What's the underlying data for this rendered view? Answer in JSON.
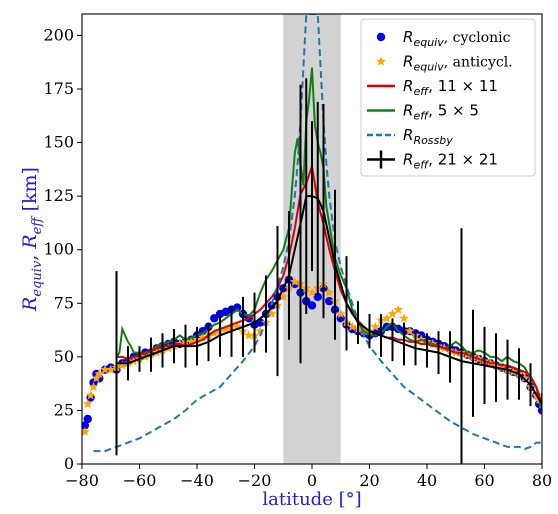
{
  "chart_data": {
    "type": "line",
    "xlabel": "latitude [°]",
    "ylabel": {
      "r1_base": "R",
      "r1_sub": "equiv",
      "sep": ", ",
      "r2_base": "R",
      "r2_sub": "eff",
      "unit": " [km]"
    },
    "xlim": [
      -80,
      80
    ],
    "ylim": [
      0,
      210
    ],
    "xticks": [
      "−80",
      "−60",
      "−40",
      "−20",
      "0",
      "20",
      "40",
      "60",
      "80"
    ],
    "xtick_values": [
      -80,
      -60,
      -40,
      -20,
      0,
      20,
      40,
      60,
      80
    ],
    "yticks": [
      "0",
      "25",
      "50",
      "75",
      "100",
      "125",
      "150",
      "175",
      "200"
    ],
    "ytick_values": [
      0,
      25,
      50,
      75,
      100,
      125,
      150,
      175,
      200
    ],
    "grid": false,
    "shaded_band": {
      "x_from": -10,
      "x_to": 10,
      "color": "#d3d3d3"
    },
    "legend": {
      "placement": "top-right",
      "entries": [
        {
          "key": "cyclonic",
          "base": "R",
          "sub": "equiv",
          "rest": ", cyclonic",
          "marker": "circle",
          "color": "#0000ee"
        },
        {
          "key": "anticyclonic",
          "base": "R",
          "sub": "equiv",
          "rest": ", anticycl.",
          "marker": "star",
          "color": "#ffa500"
        },
        {
          "key": "reff11",
          "base": "R",
          "sub": "eff",
          "rest": ",   11 × 11",
          "marker": "line",
          "color": "#e00000"
        },
        {
          "key": "reff5",
          "base": "R",
          "sub": "eff",
          "rest": ",   5 × 5",
          "marker": "line",
          "color": "#108010"
        },
        {
          "key": "rossby",
          "base": "R",
          "sub": "Rossby",
          "rest": "",
          "marker": "dashed",
          "color": "#1f77b4"
        },
        {
          "key": "reff21",
          "base": "R",
          "sub": "eff",
          "rest": ",   21 × 21",
          "marker": "errorbar",
          "color": "#000000"
        }
      ]
    },
    "series": [
      {
        "key": "cyclonic",
        "style": "scatter-circle",
        "color": "#0000ee",
        "x": [
          -79,
          -78,
          -77,
          -76,
          -75,
          -74,
          -72,
          -70,
          -68,
          -66,
          -64,
          -62,
          -60,
          -58,
          -56,
          -54,
          -52,
          -50,
          -48,
          -46,
          -44,
          -42,
          -40,
          -38,
          -36,
          -34,
          -32,
          -30,
          -28,
          -26,
          -24,
          -22,
          -20,
          -18,
          -16,
          -14,
          -12,
          -10,
          -8,
          -6,
          -4,
          -2,
          0,
          2,
          4,
          6,
          8,
          10,
          12,
          14,
          16,
          18,
          20,
          22,
          24,
          26,
          28,
          30,
          32,
          34,
          36,
          38,
          40,
          42,
          44,
          46,
          48,
          50,
          52,
          54,
          56,
          58,
          60,
          62,
          64,
          66,
          68,
          70,
          72,
          74,
          76,
          78,
          79,
          80
        ],
        "y": [
          18,
          21,
          31,
          38,
          42,
          40,
          44,
          45,
          44,
          47,
          48,
          50,
          50,
          52,
          52,
          54,
          55,
          56,
          57,
          56,
          57,
          58,
          60,
          62,
          64,
          68,
          70,
          71,
          72,
          73,
          70,
          68,
          65,
          66,
          70,
          74,
          78,
          82,
          86,
          84,
          80,
          76,
          74,
          78,
          82,
          76,
          72,
          68,
          65,
          63,
          62,
          61,
          60,
          61,
          62,
          64,
          64,
          63,
          62,
          62,
          61,
          60,
          58,
          57,
          56,
          55,
          54,
          53,
          52,
          51,
          50,
          49,
          48,
          47,
          46,
          45,
          44,
          43,
          42,
          40,
          36,
          32,
          28,
          25
        ]
      },
      {
        "key": "anticyclonic",
        "style": "scatter-star",
        "color": "#ffa500",
        "x": [
          -79,
          -78,
          -77,
          -76,
          -75,
          -74,
          -72,
          -70,
          -68,
          -66,
          -64,
          -62,
          -60,
          -58,
          -56,
          -54,
          -52,
          -50,
          -48,
          -46,
          -44,
          -42,
          -40,
          -38,
          -36,
          -34,
          -32,
          -30,
          -28,
          -26,
          -24,
          -22,
          -20,
          -18,
          -16,
          -14,
          -12,
          -10,
          -8,
          -6,
          -4,
          -2,
          0,
          2,
          4,
          6,
          8,
          10,
          12,
          14,
          16,
          18,
          20,
          22,
          24,
          26,
          28,
          30,
          32,
          34,
          36,
          38,
          40,
          42,
          44,
          46,
          48,
          50,
          52,
          54,
          56,
          58,
          60,
          62,
          64,
          66,
          68,
          70,
          72,
          74,
          76,
          78,
          79,
          80
        ],
        "y": [
          15,
          28,
          32,
          36,
          40,
          42,
          44,
          44,
          45,
          46,
          47,
          48,
          49,
          50,
          51,
          52,
          53,
          54,
          55,
          56,
          57,
          57,
          58,
          59,
          60,
          61,
          62,
          63,
          64,
          64,
          62,
          60,
          60,
          62,
          66,
          70,
          74,
          78,
          82,
          85,
          84,
          82,
          80,
          82,
          84,
          80,
          76,
          70,
          66,
          64,
          63,
          62,
          62,
          64,
          67,
          68,
          70,
          72,
          68,
          62,
          60,
          58,
          57,
          56,
          55,
          54,
          53,
          52,
          52,
          51,
          50,
          49,
          48,
          47,
          46,
          45,
          44,
          43,
          42,
          40,
          36,
          32,
          30,
          28
        ]
      },
      {
        "key": "reff11",
        "style": "line",
        "color": "#e00000",
        "x": [
          -68,
          -66,
          -64,
          -62,
          -60,
          -58,
          -56,
          -54,
          -52,
          -50,
          -48,
          -46,
          -44,
          -42,
          -40,
          -38,
          -36,
          -34,
          -32,
          -30,
          -28,
          -26,
          -24,
          -22,
          -20,
          -18,
          -16,
          -14,
          -12,
          -10,
          -8,
          -6,
          -4,
          -2,
          0,
          2,
          4,
          6,
          8,
          10,
          12,
          14,
          16,
          18,
          20,
          22,
          24,
          26,
          28,
          30,
          32,
          34,
          36,
          38,
          40,
          42,
          44,
          46,
          48,
          50,
          52,
          54,
          56,
          58,
          60,
          62,
          64,
          66,
          68,
          70,
          72,
          74,
          76,
          78,
          80
        ],
        "y": [
          50,
          50,
          49,
          50,
          51,
          52,
          53,
          54,
          55,
          55,
          56,
          56,
          55,
          56,
          57,
          58,
          60,
          62,
          63,
          64,
          65,
          66,
          67,
          68,
          70,
          72,
          75,
          78,
          82,
          88,
          97,
          110,
          126,
          131,
          139,
          122,
          112,
          100,
          90,
          81,
          75,
          70,
          67,
          64,
          62,
          61,
          60,
          59,
          59,
          58,
          58,
          57,
          57,
          56,
          56,
          55,
          55,
          54,
          53,
          52,
          52,
          51,
          50,
          49,
          48,
          47,
          47,
          46,
          46,
          45,
          44,
          43,
          41,
          36,
          28
        ]
      },
      {
        "key": "reff5",
        "style": "line",
        "color": "#108010",
        "x": [
          -68,
          -67,
          -66,
          -65,
          -64,
          -63,
          -62,
          -60,
          -58,
          -56,
          -54,
          -52,
          -50,
          -48,
          -46,
          -44,
          -42,
          -40,
          -38,
          -36,
          -34,
          -32,
          -30,
          -28,
          -26,
          -24,
          -22,
          -20,
          -18,
          -16,
          -14,
          -12,
          -10,
          -8,
          -7,
          -6,
          -5,
          -4,
          -3,
          -2,
          -1,
          0,
          1,
          2,
          3,
          4,
          5,
          6,
          7,
          8,
          10,
          12,
          14,
          16,
          18,
          20,
          22,
          24,
          26,
          28,
          30,
          32,
          34,
          36,
          38,
          40,
          42,
          44,
          46,
          48,
          50,
          52,
          54,
          56,
          58,
          60,
          62,
          64,
          66,
          68,
          70,
          72,
          74,
          76,
          78,
          80
        ],
        "y": [
          50,
          52,
          63,
          60,
          57,
          55,
          52,
          52,
          51,
          53,
          55,
          56,
          57,
          58,
          60,
          58,
          59,
          60,
          61,
          63,
          65,
          66,
          68,
          70,
          72,
          70,
          69,
          72,
          80,
          86,
          90,
          95,
          100,
          110,
          128,
          145,
          152,
          140,
          130,
          160,
          170,
          185,
          158,
          150,
          145,
          138,
          120,
          112,
          104,
          96,
          88,
          82,
          72,
          66,
          62,
          60,
          60,
          61,
          64,
          66,
          62,
          60,
          58,
          57,
          58,
          57,
          56,
          55,
          54,
          55,
          57,
          55,
          52,
          52,
          53,
          52,
          50,
          50,
          48,
          50,
          48,
          47,
          45,
          40,
          36,
          25
        ]
      },
      {
        "key": "rossby",
        "style": "dashed",
        "color": "#1f77b4",
        "x": [
          -76,
          -72,
          -68,
          -64,
          -60,
          -56,
          -52,
          -48,
          -44,
          -40,
          -36,
          -32,
          -28,
          -24,
          -20,
          -18,
          -16,
          -14,
          -12,
          -10,
          -8,
          -6,
          -5,
          -4,
          -3,
          -2,
          -1,
          1,
          2,
          3,
          4,
          5,
          6,
          8,
          10,
          12,
          14,
          16,
          18,
          20,
          24,
          28,
          32,
          36,
          40,
          44,
          48,
          52,
          56,
          60,
          64,
          68,
          72,
          74,
          76,
          78,
          80
        ],
        "y": [
          6,
          6,
          8,
          10,
          12,
          15,
          18,
          21,
          25,
          30,
          33,
          36,
          42,
          48,
          55,
          60,
          67,
          75,
          83,
          92,
          104,
          125,
          140,
          160,
          185,
          210,
          210,
          210,
          210,
          185,
          160,
          140,
          125,
          104,
          92,
          83,
          75,
          67,
          60,
          55,
          48,
          42,
          36,
          32,
          28,
          24,
          20,
          17,
          14,
          12,
          10,
          8,
          8,
          7,
          8,
          10,
          10
        ]
      },
      {
        "key": "reff21",
        "style": "line-errorbar",
        "color": "#000000",
        "x": [
          -68,
          -64,
          -60,
          -56,
          -52,
          -48,
          -44,
          -40,
          -36,
          -32,
          -28,
          -24,
          -20,
          -16,
          -12,
          -8,
          -4,
          -2,
          0,
          2,
          4,
          8,
          12,
          16,
          20,
          24,
          28,
          32,
          36,
          40,
          44,
          48,
          52,
          56,
          60,
          64,
          68,
          72,
          76,
          80
        ],
        "y": [
          47,
          47,
          49,
          51,
          53,
          55,
          55,
          55,
          57,
          60,
          62,
          64,
          66,
          70,
          76,
          88,
          112,
          125,
          125,
          124,
          118,
          93,
          75,
          66,
          62,
          60,
          58,
          56,
          54,
          53,
          52,
          50,
          48,
          47,
          46,
          45,
          44,
          42,
          37,
          28
        ],
        "yerr": [
          43,
          8,
          6,
          8,
          8,
          8,
          10,
          9,
          9,
          10,
          12,
          14,
          14,
          18,
          35,
          30,
          65,
          55,
          35,
          45,
          50,
          35,
          22,
          10,
          8,
          10,
          10,
          10,
          8,
          8,
          10,
          12,
          62,
          25,
          18,
          16,
          14,
          12,
          10,
          5
        ]
      }
    ]
  }
}
